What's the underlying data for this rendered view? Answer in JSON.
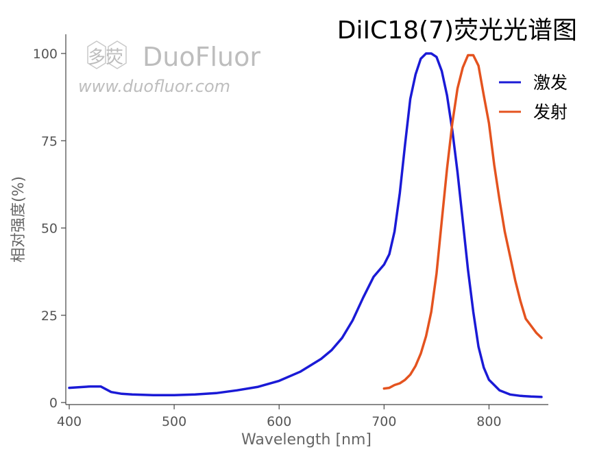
{
  "chart_data": {
    "type": "line",
    "title": "DiIC18(7)荧光光谱图",
    "xlabel": "Wavelength [nm]",
    "ylabel": "相对强度(%)",
    "xlim": [
      400,
      850
    ],
    "ylim": [
      0,
      105
    ],
    "xticks": [
      400,
      500,
      600,
      700,
      800
    ],
    "yticks": [
      0,
      25,
      50,
      75,
      100
    ],
    "grid": false,
    "legend_position": "top-right",
    "series": [
      {
        "name": "激发",
        "color": "#1a1ad6",
        "x": [
          400,
          410,
          420,
          430,
          440,
          450,
          460,
          480,
          500,
          520,
          540,
          560,
          580,
          600,
          620,
          640,
          650,
          660,
          670,
          680,
          690,
          700,
          705,
          710,
          715,
          720,
          725,
          730,
          735,
          740,
          745,
          750,
          755,
          760,
          765,
          770,
          775,
          780,
          785,
          790,
          795,
          800,
          810,
          820,
          830,
          840,
          850
        ],
        "y": [
          4.2,
          4.4,
          4.6,
          4.6,
          3.0,
          2.5,
          2.3,
          2.1,
          2.1,
          2.3,
          2.7,
          3.5,
          4.5,
          6.2,
          8.8,
          12.5,
          15.0,
          18.5,
          23.5,
          30.0,
          36.0,
          39.5,
          42.5,
          49.0,
          60.0,
          74.0,
          87.0,
          94.0,
          98.5,
          100.0,
          100.0,
          99.0,
          95.0,
          88.0,
          78.0,
          66.0,
          52.0,
          38.0,
          26.0,
          16.0,
          10.0,
          6.5,
          3.5,
          2.3,
          1.9,
          1.7,
          1.6
        ]
      },
      {
        "name": "发射",
        "color": "#e4531f",
        "x": [
          700,
          705,
          710,
          715,
          720,
          725,
          730,
          735,
          740,
          745,
          750,
          755,
          760,
          765,
          770,
          775,
          780,
          785,
          790,
          795,
          800,
          805,
          810,
          815,
          820,
          825,
          830,
          835,
          840,
          845,
          850
        ],
        "y": [
          4.0,
          4.2,
          5.0,
          5.5,
          6.5,
          8.0,
          10.5,
          14.0,
          19.0,
          26.0,
          37.0,
          52.0,
          67.0,
          80.0,
          90.0,
          96.0,
          99.5,
          99.5,
          96.5,
          88.0,
          80.0,
          68.0,
          58.0,
          49.0,
          42.0,
          35.0,
          29.0,
          24.0,
          22.0,
          20.0,
          18.5
        ]
      }
    ]
  },
  "watermark": {
    "brand": "DuoFluor",
    "cn": "多荧",
    "url": "www.duofluor.com"
  }
}
